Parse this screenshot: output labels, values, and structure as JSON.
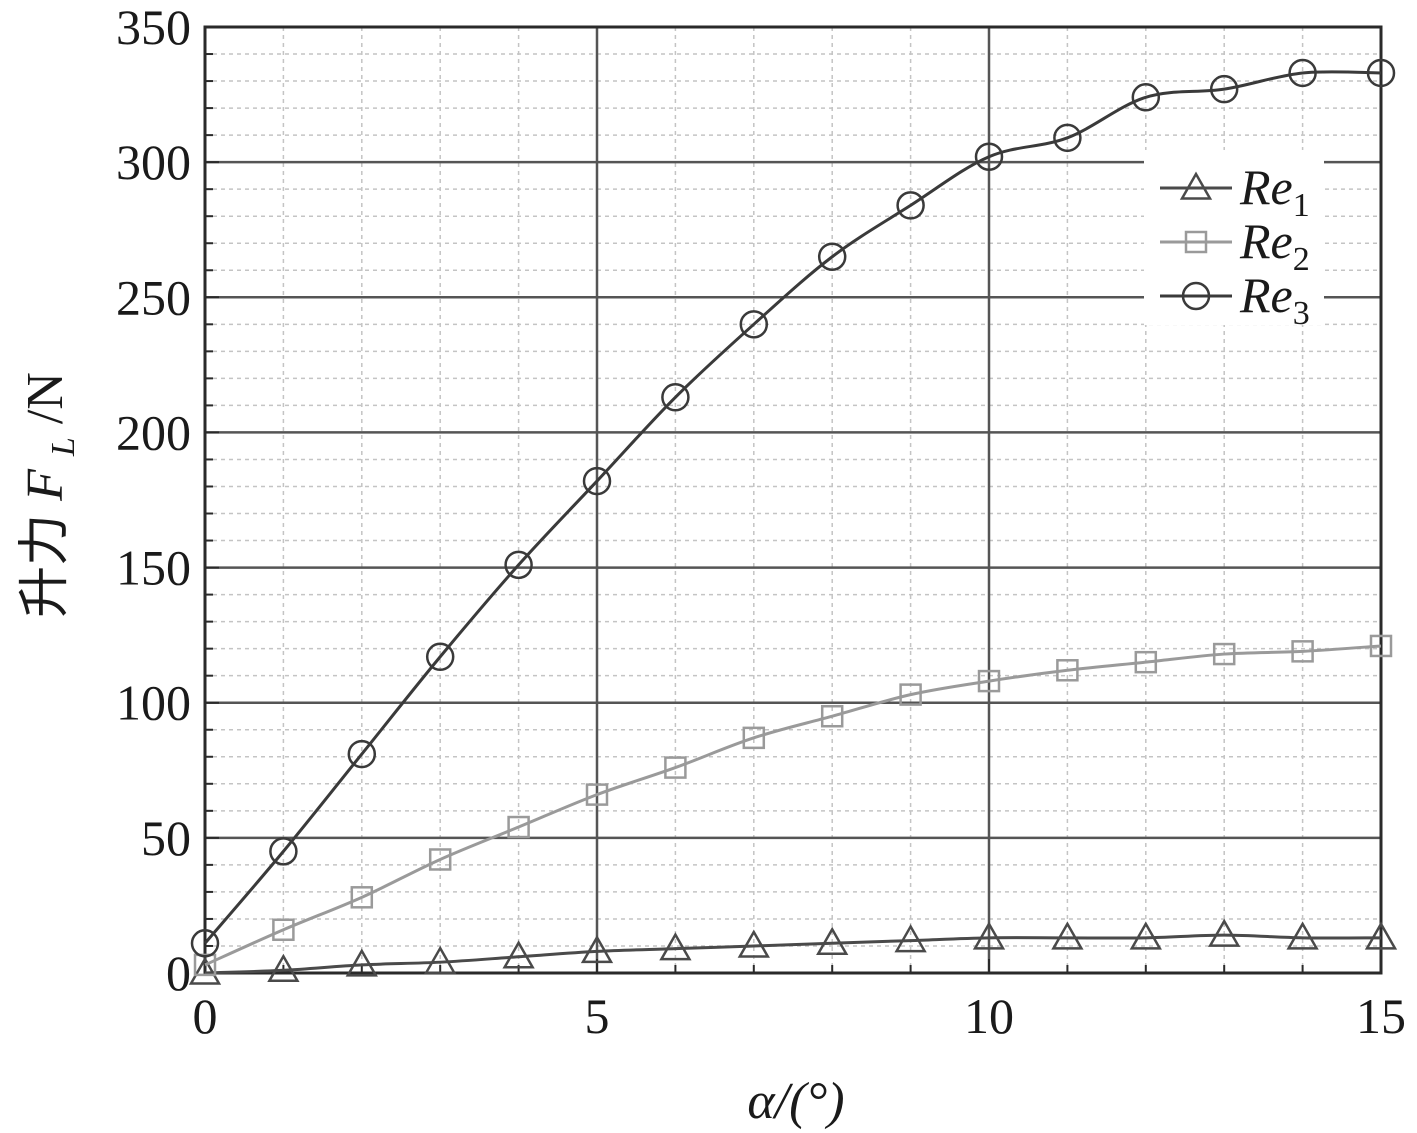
{
  "chart_data": {
    "type": "line",
    "xlabel": "α/(°)",
    "ylabel": {
      "prefix": "升力",
      "var": "F",
      "sub": "L",
      "suffix": "/N"
    },
    "xlim": [
      0,
      15
    ],
    "ylim": [
      0,
      350
    ],
    "xticks": [
      0,
      5,
      10,
      15
    ],
    "yticks": [
      0,
      50,
      100,
      150,
      200,
      250,
      300,
      350
    ],
    "x_tick_labels": [
      "0",
      "5",
      "10",
      "15"
    ],
    "y_tick_labels": [
      "0",
      "50",
      "100",
      "150",
      "200",
      "250",
      "300",
      "350"
    ],
    "grid": "major solid, minor dashed",
    "legend_position": "top-right",
    "x": [
      0,
      1,
      2,
      3,
      4,
      5,
      6,
      7,
      8,
      9,
      10,
      11,
      12,
      13,
      14,
      15
    ],
    "series": [
      {
        "name": "Re",
        "name_sub": "1",
        "marker": "triangle",
        "color": "#4a4a4a",
        "values": [
          0,
          1,
          3,
          4,
          6,
          8,
          9,
          10,
          11,
          12,
          13,
          13,
          13,
          14,
          13,
          13
        ]
      },
      {
        "name": "Re",
        "name_sub": "2",
        "marker": "square",
        "color": "#9a9a9a",
        "values": [
          3,
          16,
          28,
          42,
          54,
          66,
          76,
          87,
          95,
          103,
          108,
          112,
          115,
          118,
          119,
          121
        ]
      },
      {
        "name": "Re",
        "name_sub": "3",
        "marker": "circle",
        "color": "#3a3a3a",
        "values": [
          11,
          45,
          81,
          117,
          151,
          182,
          213,
          240,
          265,
          284,
          302,
          309,
          324,
          327,
          333,
          333
        ]
      }
    ]
  }
}
